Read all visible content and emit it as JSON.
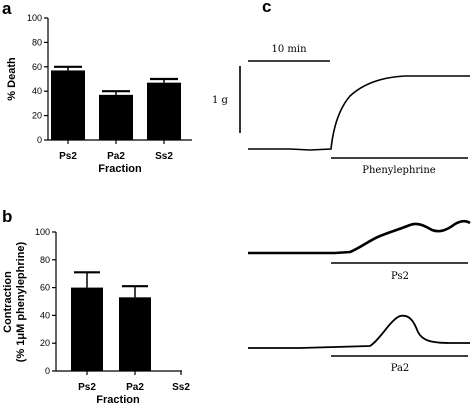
{
  "panels": {
    "a": "a",
    "b": "b",
    "c": "c"
  },
  "chart_data": [
    {
      "type": "bar",
      "panel": "a",
      "categories": [
        "Ps2",
        "Pa2",
        "Ss2"
      ],
      "values": [
        57,
        37,
        47
      ],
      "errors": [
        3,
        3,
        3
      ],
      "xlabel": "Fraction",
      "ylabel": "% Death",
      "ylim": [
        0,
        100
      ],
      "yticks": [
        "0",
        "20",
        "40",
        "60",
        "80",
        "100"
      ]
    },
    {
      "type": "bar",
      "panel": "b",
      "categories": [
        "Ps2",
        "Pa2",
        "Ss2"
      ],
      "values": [
        60,
        53,
        0
      ],
      "errors": [
        11,
        8,
        0
      ],
      "xlabel": "Fraction",
      "ylabel_line1": "Contraction",
      "ylabel_line2": "(% 1μM phenylephrine)",
      "ylim": [
        0,
        100
      ],
      "yticks": [
        "0",
        "20",
        "40",
        "60",
        "80",
        "100"
      ]
    },
    {
      "type": "line",
      "panel": "c",
      "scale_time": "10 min",
      "scale_force": "1 g",
      "traces": [
        {
          "name": "Phenylephrine",
          "shape": "sustained rise"
        },
        {
          "name": "Ps2",
          "shape": "slow rise with oscillation"
        },
        {
          "name": "Pa2",
          "shape": "transient peak"
        }
      ]
    }
  ]
}
